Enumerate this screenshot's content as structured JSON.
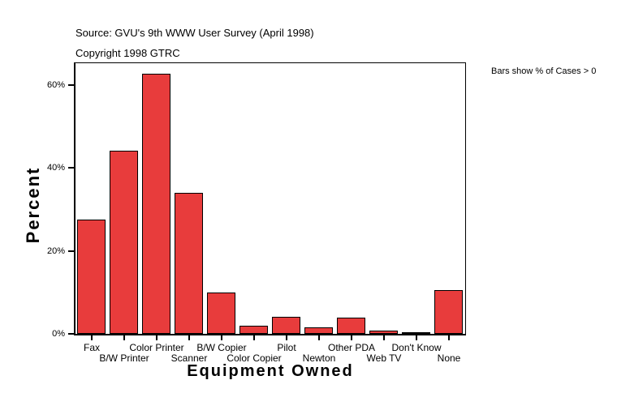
{
  "chart_data": {
    "type": "bar",
    "title": "Source: GVU's 9th WWW User Survey (April 1998)",
    "subtitle": "Copyright 1998 GTRC",
    "annotation": "Bars show % of Cases > 0",
    "xlabel": "Equipment Owned",
    "ylabel": "Percent",
    "categories": [
      "Fax",
      "B/W Printer",
      "Color Printer",
      "Scanner",
      "B/W Copier",
      "Color Copier",
      "Pilot",
      "Newton",
      "Other PDA",
      "Web TV",
      "Don't Know",
      "None"
    ],
    "values": [
      27.6,
      44.2,
      62.8,
      34.1,
      10.0,
      2.0,
      4.1,
      1.6,
      3.9,
      0.8,
      0.2,
      10.6
    ],
    "ytick_values": [
      0,
      20,
      40,
      60
    ],
    "ytick_labels": [
      "0%",
      "20%",
      "40%",
      "60%"
    ],
    "ylim": [
      0,
      65.3
    ],
    "grid": false,
    "legend_position": "none",
    "bar_color": "#E83C3C",
    "bar_border_color": "#000000",
    "background_color": "#FFFFFF",
    "text_color": "#000000"
  }
}
